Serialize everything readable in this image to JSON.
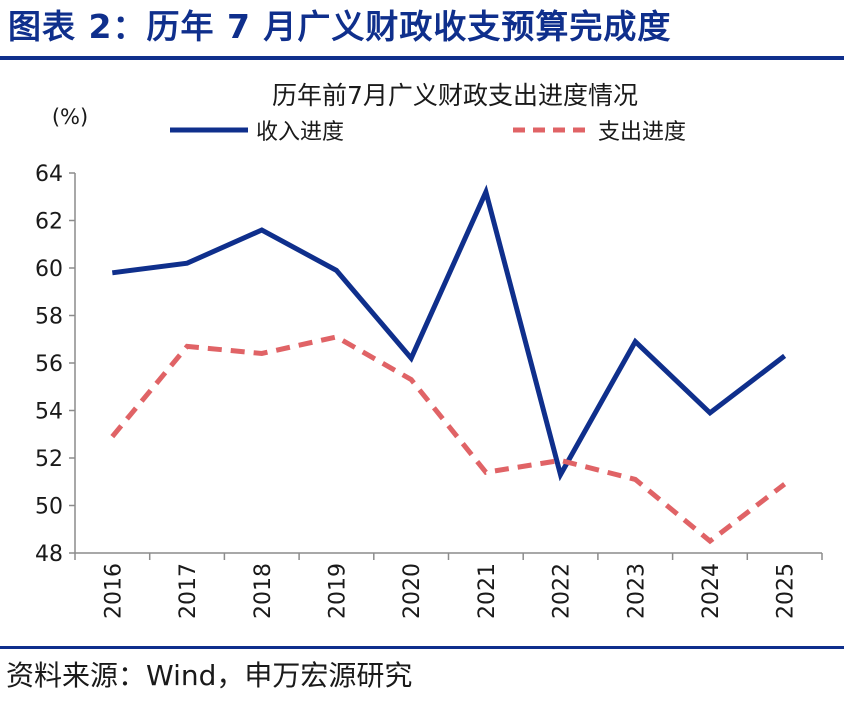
{
  "header": {
    "figure_title": "图表 2：历年 7 月广义财政收支预算完成度"
  },
  "footer": {
    "source": "资料来源：Wind，申万宏源研究"
  },
  "chart_data": {
    "type": "line",
    "title": "历年前7月广义财政支出进度情况",
    "ylabel": "(%)",
    "xlabel": "",
    "categories": [
      "2016",
      "2017",
      "2018",
      "2019",
      "2020",
      "2021",
      "2022",
      "2023",
      "2024",
      "2025"
    ],
    "ylim": [
      48,
      64
    ],
    "yticks": [
      "48",
      "50",
      "52",
      "54",
      "56",
      "58",
      "60",
      "62",
      "64"
    ],
    "grid": false,
    "legend_position": "top",
    "series": [
      {
        "name": "收入进度",
        "values": [
          59.8,
          60.2,
          61.6,
          59.9,
          56.2,
          63.2,
          51.3,
          56.9,
          53.9,
          56.3
        ],
        "color": "#0F2F8C",
        "style": "solid"
      },
      {
        "name": "支出进度",
        "values": [
          52.9,
          56.7,
          56.4,
          57.1,
          55.3,
          51.4,
          51.9,
          51.1,
          48.5,
          50.9
        ],
        "color": "#E06366",
        "style": "dashed"
      }
    ]
  }
}
